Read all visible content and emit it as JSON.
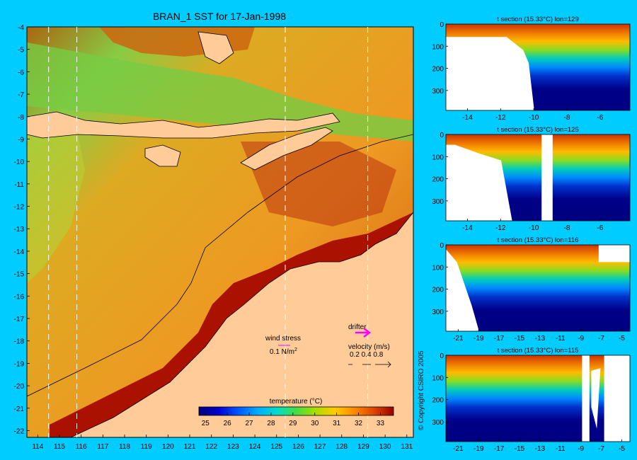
{
  "main_title": "BRAN_1 SST for 17-Jan-1998",
  "copyright": "© Copyright CSIRO 2005",
  "map": {
    "lon_ticks": [
      "114",
      "115",
      "116",
      "117",
      "118",
      "119",
      "120",
      "121",
      "122",
      "123",
      "124",
      "125",
      "126",
      "127",
      "128",
      "129",
      "130",
      "131"
    ],
    "lat_ticks": [
      "-4",
      "-5",
      "-6",
      "-7",
      "-8",
      "-9",
      "-10",
      "-11",
      "-12",
      "-13",
      "-14",
      "-15",
      "-16",
      "-17",
      "-18",
      "-19",
      "-20",
      "-21",
      "-22"
    ],
    "section_lons": [
      114.5,
      115.8,
      125.4,
      129.2
    ],
    "colors": {
      "land": "#ffcc99",
      "warm": "#aa1100",
      "mid": "#ee9922",
      "cool": "#88cc44",
      "coast": "#000000",
      "dashed": "#ffffff"
    },
    "wind_stress_label": "wind stress",
    "wind_stress_unit": "0.1 N/m",
    "wind_stress_sup": "2",
    "drifter_label": "drifter",
    "velocity_label": "velocity (m/s)",
    "velocity_values": "0.2 0.4 0.8",
    "colorbar": {
      "title": "temperature (°C)",
      "ticks": [
        "25",
        "26",
        "27",
        "28",
        "29",
        "30",
        "31",
        "32",
        "33"
      ],
      "range": [
        24.7,
        33.6
      ],
      "stops": [
        "#000080",
        "#0000cc",
        "#0055ff",
        "#00aaff",
        "#00ddcc",
        "#44dd44",
        "#aadd00",
        "#ffcc00",
        "#ff8800",
        "#dd4400",
        "#990000"
      ]
    }
  },
  "chart_data": [
    {
      "type": "heatmap",
      "title": "BRAN_1 SST for 17-Jan-1998",
      "xlim": [
        113.5,
        131.3
      ],
      "ylim": [
        -22.3,
        -4
      ],
      "colorbar_label": "temperature (°C)",
      "colorbar_range": [
        25,
        33
      ]
    },
    {
      "type": "heatmap",
      "title": "t section (15.33°C) lon=129",
      "xticks": [
        "-14",
        "-12",
        "-10",
        "-8",
        "-6"
      ],
      "yticks": [
        "0",
        "100",
        "200",
        "300"
      ],
      "xlim": [
        -15.3,
        -4.2
      ],
      "ylim": [
        0,
        390
      ]
    },
    {
      "type": "heatmap",
      "title": "t section (15.33°C) lon=125",
      "xticks": [
        "-14",
        "-12",
        "-10",
        "-8",
        "-6"
      ],
      "yticks": [
        "0",
        "100",
        "200",
        "300"
      ],
      "xlim": [
        -15.3,
        -4.2
      ],
      "ylim": [
        0,
        390
      ]
    },
    {
      "type": "heatmap",
      "title": "t section (15.33°C) lon=116",
      "xticks": [
        "-21",
        "-19",
        "-17",
        "-15",
        "-13",
        "-11",
        "-9",
        "-7",
        "-5"
      ],
      "yticks": [
        "0",
        "100",
        "200",
        "300"
      ],
      "xlim": [
        -22.2,
        -4.2
      ],
      "ylim": [
        0,
        390
      ]
    },
    {
      "type": "heatmap",
      "title": "t section (15.33°C) lon=115",
      "xticks": [
        "-21",
        "-19",
        "-17",
        "-15",
        "-13",
        "-11",
        "-9",
        "-7",
        "-5"
      ],
      "yticks": [
        "0",
        "100",
        "200",
        "300"
      ],
      "xlim": [
        -22.2,
        -4.2
      ],
      "ylim": [
        0,
        390
      ]
    }
  ]
}
